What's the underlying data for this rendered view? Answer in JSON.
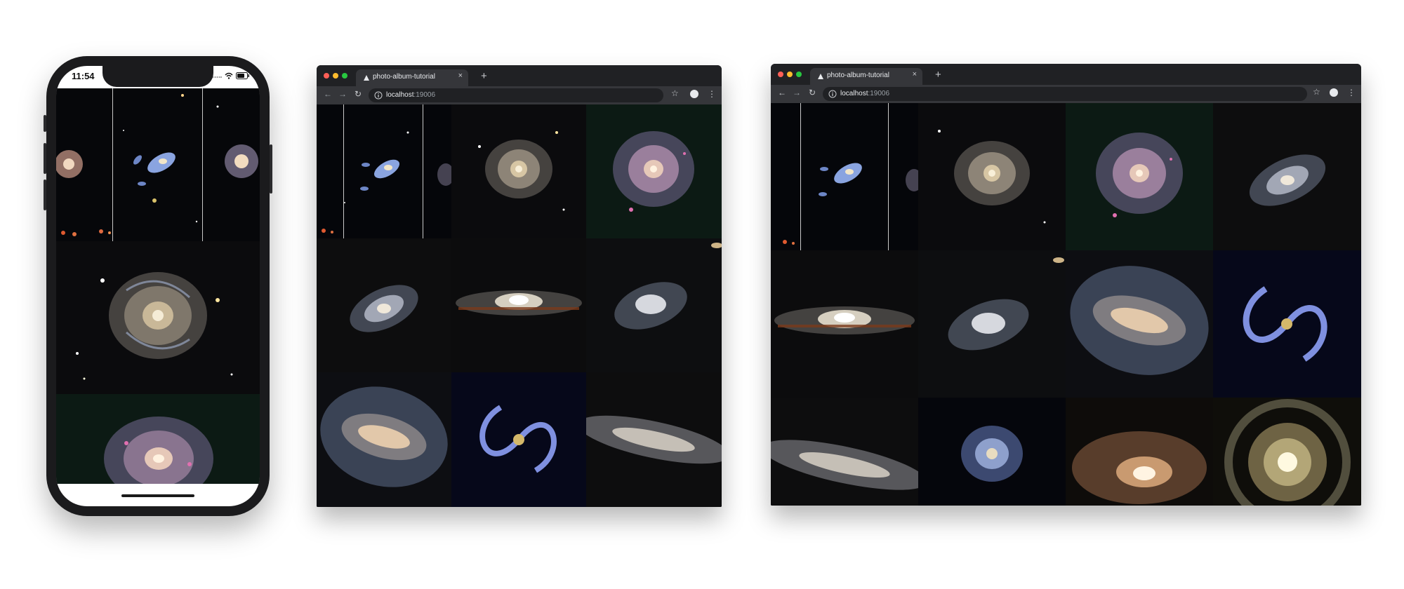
{
  "phone": {
    "time": "11:54",
    "icons": [
      "signal-dots-icon",
      "wifi-icon",
      "battery-icon"
    ]
  },
  "browser_small": {
    "tab_title": "photo-album-tutorial",
    "url_host": "localhost",
    "url_port": ":19006",
    "new_tab": "+",
    "tab_close": "×"
  },
  "browser_large": {
    "tab_title": "photo-album-tutorial",
    "url_host": "localhost",
    "url_port": ":19006",
    "new_tab": "+",
    "tab_close": "×"
  },
  "toolbar_glyphs": {
    "back": "←",
    "forward": "→",
    "reload": "↻",
    "star": "☆",
    "menu": "⋮"
  },
  "colors": {
    "browser_chrome": "#202124",
    "browser_toolbar": "#35363a",
    "traffic_red": "#ff5f57",
    "traffic_yellow": "#febc2e",
    "traffic_green": "#28c840",
    "phone_body": "#1b1b1d"
  }
}
